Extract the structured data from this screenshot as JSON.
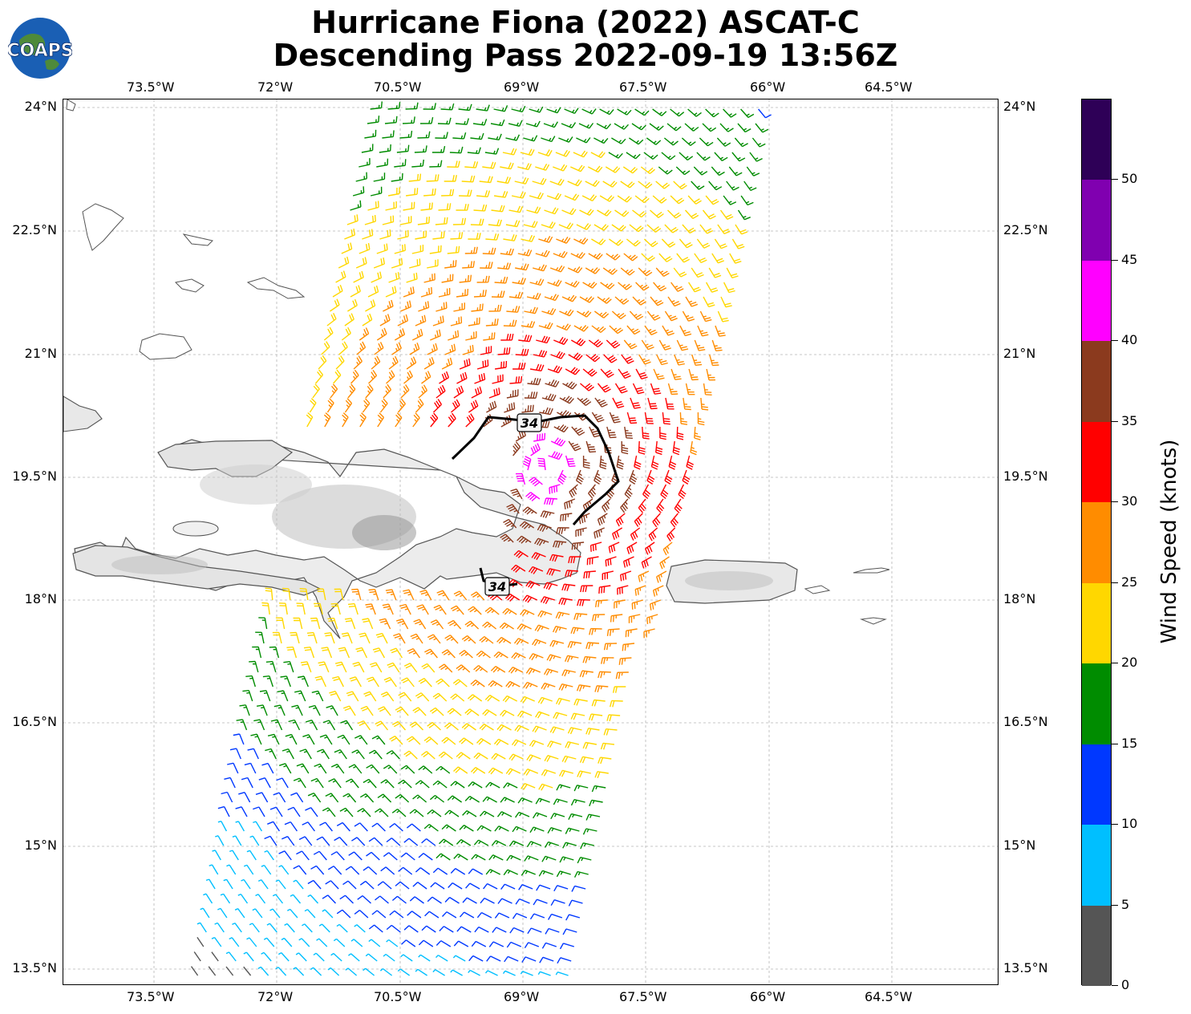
{
  "header": {
    "title_line1": "Hurricane Fiona (2022) ASCAT-C",
    "title_line2": "Descending Pass 2022-09-19 13:56Z",
    "logo_text": "COAPS"
  },
  "map": {
    "lon_ticks": [
      "73.5°W",
      "72°W",
      "70.5°W",
      "69°W",
      "67.5°W",
      "66°W",
      "64.5°W"
    ],
    "lat_ticks": [
      "24°N",
      "22.5°N",
      "21°N",
      "19.5°N",
      "18°N",
      "16.5°N",
      "15°N",
      "13.5°N"
    ],
    "wind_radius_labels": [
      "34",
      "34"
    ]
  },
  "colorbar": {
    "label": "Wind Speed (knots)",
    "tick_labels": [
      "0",
      "5",
      "10",
      "15",
      "20",
      "25",
      "30",
      "35",
      "40",
      "45",
      "50"
    ],
    "bins": [
      {
        "min": 0,
        "max": 5,
        "color": "#555555"
      },
      {
        "min": 5,
        "max": 10,
        "color": "#00bfff"
      },
      {
        "min": 10,
        "max": 15,
        "color": "#0038ff"
      },
      {
        "min": 15,
        "max": 20,
        "color": "#008c00"
      },
      {
        "min": 20,
        "max": 25,
        "color": "#ffd700"
      },
      {
        "min": 25,
        "max": 30,
        "color": "#ff8c00"
      },
      {
        "min": 30,
        "max": 35,
        "color": "#ff0000"
      },
      {
        "min": 35,
        "max": 40,
        "color": "#8b3a1e"
      },
      {
        "min": 40,
        "max": 45,
        "color": "#ff00ff"
      },
      {
        "min": 45,
        "max": 50,
        "color": "#8000b0"
      },
      {
        "min": 50,
        "max": 55,
        "color": "#2e0057"
      }
    ]
  }
}
